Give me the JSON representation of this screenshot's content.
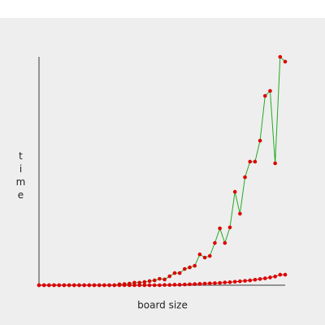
{
  "chart_data": {
    "type": "line",
    "xlabel": "board size",
    "ylabel": "time",
    "x": [
      1,
      2,
      3,
      4,
      5,
      6,
      7,
      8,
      9,
      10,
      11,
      12,
      13,
      14,
      15,
      16,
      17,
      18,
      19,
      20,
      21,
      22,
      23,
      24,
      25,
      26,
      27,
      28,
      29,
      30,
      31,
      32,
      33,
      34,
      35,
      36,
      37,
      38,
      39,
      40,
      41,
      42,
      43,
      44,
      45,
      46,
      47,
      48,
      49,
      50
    ],
    "xlim": [
      1,
      50
    ],
    "ylim": [
      0,
      100
    ],
    "marker_color": "#dd0000",
    "series": [
      {
        "color": "#22aa22",
        "values": [
          0,
          0,
          0,
          0,
          0,
          0,
          0,
          0,
          0,
          0,
          0,
          0,
          0,
          0,
          0,
          0,
          0.4,
          0.5,
          0.7,
          1.1,
          1.1,
          1.4,
          1.8,
          2.1,
          2.8,
          2.5,
          3.9,
          5.3,
          5.3,
          7.1,
          7.8,
          8.5,
          13.5,
          12.1,
          12.8,
          18.5,
          24.9,
          18.5,
          25.3,
          40.9,
          31.3,
          47.3,
          54.1,
          54.1,
          63.3,
          82.9,
          85.1,
          53.4,
          100,
          97.9
        ]
      },
      {
        "color": "#cc0000",
        "values": [
          0,
          0,
          0,
          0,
          0,
          0,
          0,
          0,
          0,
          0,
          0,
          0,
          0,
          0,
          0,
          0,
          0,
          0,
          0,
          0,
          0,
          0,
          0,
          0,
          0,
          0.1,
          0.1,
          0.2,
          0.2,
          0.3,
          0.4,
          0.5,
          0.6,
          0.7,
          0.8,
          0.9,
          1.0,
          1.2,
          1.3,
          1.5,
          1.7,
          1.9,
          2.1,
          2.4,
          2.7,
          3.0,
          3.4,
          3.8,
          4.6,
          4.6
        ]
      }
    ]
  }
}
